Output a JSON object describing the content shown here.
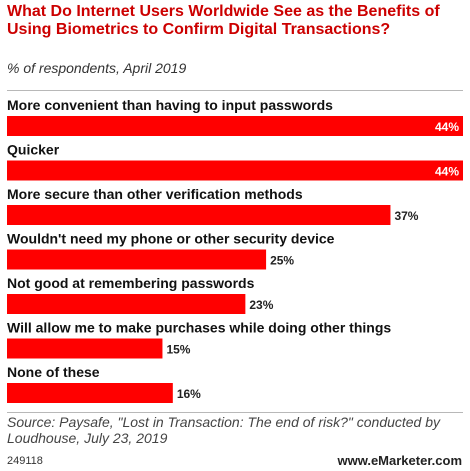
{
  "chart_data": {
    "type": "bar",
    "orientation": "horizontal",
    "title": "What Do Internet Users Worldwide See as the Benefits of Using Biometrics to Confirm Digital Transactions?",
    "subtitle": "% of respondents, April 2019",
    "categories": [
      "More convenient than having to input passwords",
      "Quicker",
      "More secure than other verification methods",
      "Wouldn't need my phone or other security device",
      "Not good at remembering passwords",
      "Will allow me to make purchases while doing other things",
      "None of these"
    ],
    "values": [
      44,
      44,
      37,
      25,
      23,
      15,
      16
    ],
    "value_labels": [
      "44%",
      "44%",
      "37%",
      "25%",
      "23%",
      "15%",
      "16%"
    ],
    "unit": "%",
    "xlim": [
      0,
      44
    ],
    "grid": false,
    "legend": "none",
    "bar_color": "#ff0000",
    "inside_label_color": "#ffffff",
    "outside_label_color": "#222222"
  },
  "footer": {
    "source": "Source: Paysafe, \"Lost in Transaction: The end of risk?\" conducted by Loudhouse, July 23, 2019",
    "chart_id": "249118",
    "brand": "www.eMarketer.com"
  }
}
